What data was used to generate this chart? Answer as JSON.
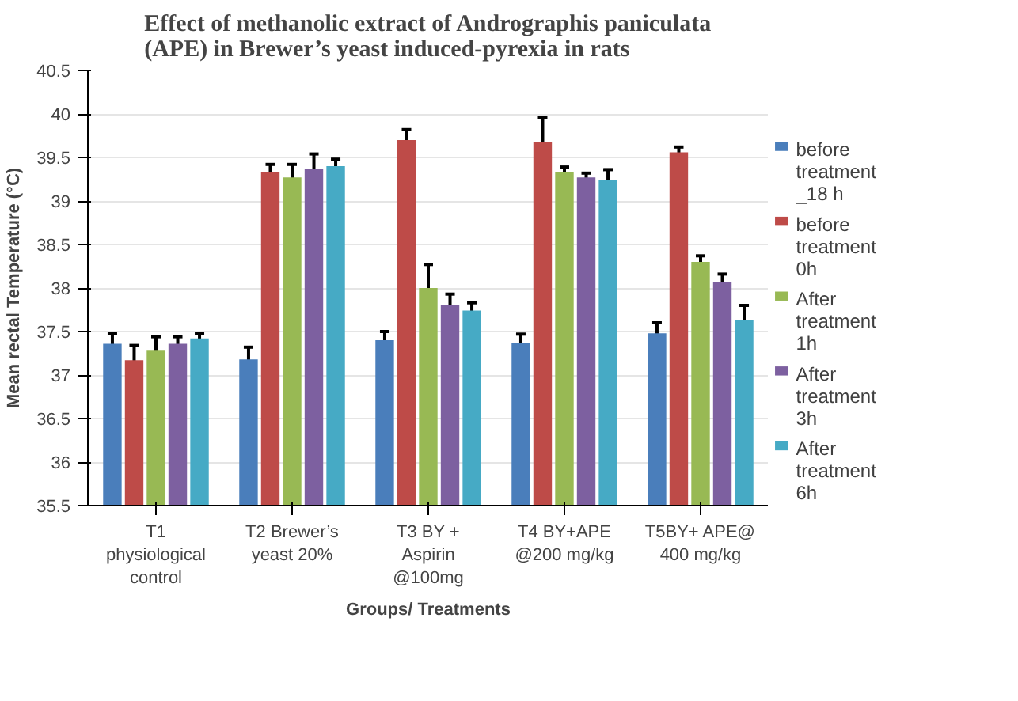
{
  "chart_data": {
    "type": "bar",
    "title": "Effect of methanolic extract of Andrographis paniculata (APE) in Brewer’s yeast induced-pyrexia in rats",
    "xlabel": "Groups/ Treatments",
    "ylabel": "Mean rectal Temperature (°C)",
    "categories": [
      "T1 physiological control",
      "T2 Brewer’s yeast 20%",
      "T3 BY + Aspirin @100mg",
      "T4 BY+APE @200 mg/kg",
      "T5BY+ APE@ 400 mg/kg"
    ],
    "series": [
      {
        "name": "before treatment _18 h",
        "color": "#4a7ebb",
        "values": [
          37.36,
          37.18,
          37.4,
          37.37,
          37.48
        ],
        "errors": [
          0.12,
          0.14,
          0.1,
          0.1,
          0.12
        ]
      },
      {
        "name": "before treatment 0h",
        "color": "#be4b48",
        "values": [
          37.17,
          39.33,
          39.7,
          39.68,
          39.56
        ],
        "errors": [
          0.17,
          0.09,
          0.12,
          0.28,
          0.06
        ]
      },
      {
        "name": "After treatment 1h",
        "color": "#98b954",
        "values": [
          37.28,
          39.27,
          38.0,
          39.33,
          38.3
        ],
        "errors": [
          0.16,
          0.15,
          0.27,
          0.06,
          0.07
        ]
      },
      {
        "name": "After treatment 3h",
        "color": "#7d60a0",
        "values": [
          37.36,
          39.37,
          37.8,
          39.27,
          38.07
        ],
        "errors": [
          0.08,
          0.17,
          0.13,
          0.05,
          0.09
        ]
      },
      {
        "name": "After treatment 6h",
        "color": "#46aac5",
        "values": [
          37.42,
          39.4,
          37.74,
          39.24,
          37.63
        ],
        "errors": [
          0.06,
          0.08,
          0.09,
          0.12,
          0.17
        ]
      }
    ],
    "ylim": [
      35.5,
      40.5
    ],
    "yticks": [
      35.5,
      36,
      36.5,
      37,
      37.5,
      38,
      38.5,
      39,
      39.5,
      40,
      40.5
    ],
    "grid": "y",
    "legend": "right"
  }
}
